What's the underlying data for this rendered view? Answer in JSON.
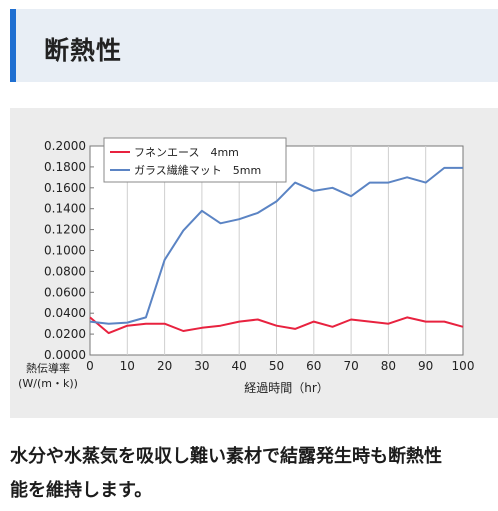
{
  "heading": {
    "title": "断熱性"
  },
  "chart_data": {
    "type": "line",
    "xlabel": "経過時間（hr）",
    "ylabel_lines": [
      "熱伝導率",
      "(W/(m・k))"
    ],
    "xlim": [
      0,
      100
    ],
    "ylim": [
      0,
      0.2
    ],
    "x_ticks": [
      "0",
      "10",
      "20",
      "30",
      "40",
      "50",
      "60",
      "70",
      "80",
      "90",
      "100"
    ],
    "y_ticks": [
      "0.0000",
      "0.0200",
      "0.0400",
      "0.0600",
      "0.0800",
      "0.1000",
      "0.1200",
      "0.1400",
      "0.1600",
      "0.1800",
      "0.2000"
    ],
    "grid": "vertical",
    "legend_position": "top-left",
    "series": [
      {
        "name": "フネンエース　4mm",
        "color": "#e8223f",
        "x": [
          0,
          5,
          10,
          15,
          20,
          25,
          30,
          35,
          40,
          45,
          50,
          55,
          60,
          65,
          70,
          75,
          80,
          85,
          90,
          95,
          100
        ],
        "values": [
          0.036,
          0.021,
          0.028,
          0.03,
          0.03,
          0.023,
          0.026,
          0.028,
          0.032,
          0.034,
          0.028,
          0.025,
          0.032,
          0.027,
          0.034,
          0.032,
          0.03,
          0.036,
          0.032,
          0.032,
          0.027
        ]
      },
      {
        "name": "ガラス繊維マット　5mm",
        "color": "#5b84c4",
        "x": [
          0,
          5,
          10,
          15,
          20,
          25,
          30,
          35,
          40,
          45,
          50,
          55,
          60,
          65,
          70,
          75,
          80,
          85,
          90,
          95,
          100
        ],
        "values": [
          0.032,
          0.03,
          0.031,
          0.036,
          0.091,
          0.119,
          0.138,
          0.126,
          0.13,
          0.136,
          0.147,
          0.165,
          0.157,
          0.16,
          0.152,
          0.165,
          0.165,
          0.17,
          0.165,
          0.179,
          0.179
        ]
      }
    ]
  },
  "description": {
    "line1": "水分や水蒸気を吸収し難い素材で結露発生時も断熱性",
    "line2": "能を維持します。"
  }
}
